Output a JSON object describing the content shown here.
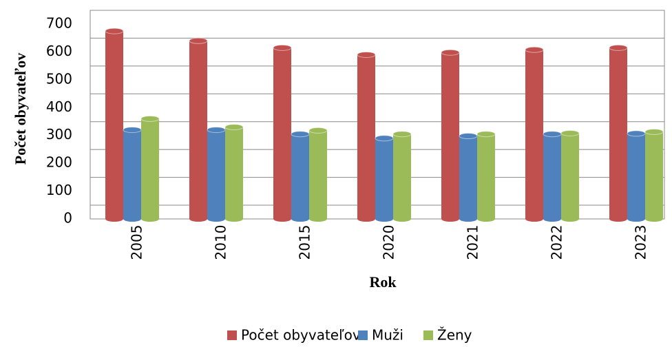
{
  "chart_data": {
    "type": "bar",
    "x_label": "Rok",
    "y_label": "Počet obyvateľov",
    "categories": [
      "2005",
      "2010",
      "2015",
      "2020",
      "2021",
      "2022",
      "2023"
    ],
    "series": [
      {
        "name": "Počet obyvateľov",
        "color": "#c0504d",
        "values": [
          675,
          640,
          615,
          590,
          598,
          608,
          615
        ]
      },
      {
        "name": "Muži",
        "color": "#4f81bd",
        "values": [
          320,
          320,
          305,
          290,
          298,
          305,
          307
        ]
      },
      {
        "name": "Ženy",
        "color": "#9bbb59",
        "values": [
          360,
          330,
          318,
          305,
          305,
          308,
          313
        ]
      }
    ],
    "ylim": [
      0,
      700
    ],
    "yticks": [
      0,
      100,
      200,
      300,
      400,
      500,
      600,
      700
    ],
    "grid": true
  }
}
